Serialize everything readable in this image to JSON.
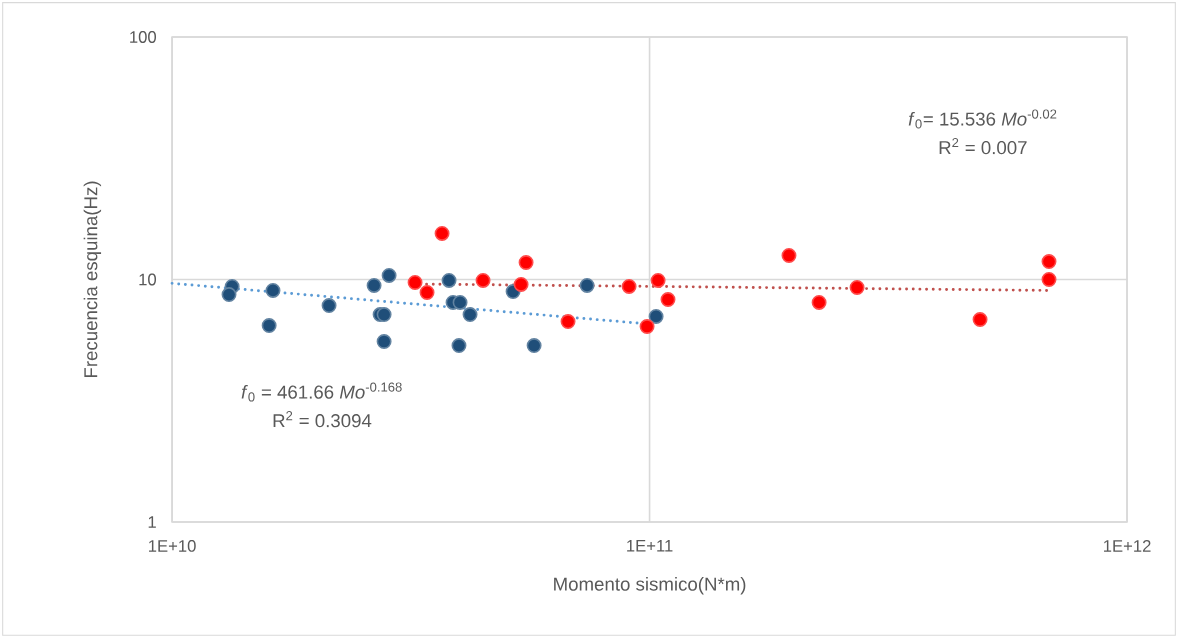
{
  "chart_data": {
    "type": "scatter",
    "xlabel": "Momento sismico(N*m)",
    "ylabel": "Frecuencia esquina(Hz)",
    "log": "xy",
    "grid": true,
    "marker": "circle",
    "xlim": [
      10000000000,
      1000000000000
    ],
    "ylim": [
      1,
      100
    ],
    "xticks": [
      {
        "value": 10000000000,
        "label": "1E+10"
      },
      {
        "value": 100000000000,
        "label": "1E+11"
      },
      {
        "value": 1000000000000,
        "label": "1E+12"
      }
    ],
    "yticks": [
      1,
      10,
      100
    ],
    "series": [
      {
        "color": "#1f4e79",
        "x": [
          13360000000,
          13160000000,
          16270000000,
          15970000000,
          21320000000,
          26490000000,
          28480000000,
          27270000000,
          27800000000,
          27800000000,
          38030000000,
          38770000000,
          40100000000,
          42080000000,
          39900000000,
          51780000000,
          57310000000,
          73990000000,
          103200000000
        ],
        "values": [
          9.36,
          8.67,
          9.01,
          6.46,
          7.81,
          9.45,
          10.39,
          7.17,
          7.17,
          5.55,
          9.91,
          8.04,
          8.04,
          7.17,
          5.34,
          8.92,
          5.34,
          9.45,
          7.04
        ]
      },
      {
        "color": "#ff0000",
        "x": [
          36770000000,
          32280000000,
          34200000000,
          44800000000,
          55130000000,
          53820000000,
          67500000000,
          90600000000,
          98800000000,
          104200000000,
          109300000000,
          195900000000,
          226500000000,
          272000000000,
          492200000000,
          686400000000,
          686400000000
        ],
        "values": [
          15.48,
          9.72,
          8.84,
          9.91,
          11.75,
          9.54,
          6.71,
          9.36,
          6.4,
          9.91,
          8.27,
          12.56,
          8.04,
          9.27,
          6.84,
          11.86,
          10.0
        ]
      },
      {
        "type": "line",
        "color": "#5b9bd5",
        "line_style": "dotted",
        "marker": "none",
        "x": [
          10000000000,
          98000000000
        ],
        "values": [
          9.64,
          6.57
        ]
      },
      {
        "type": "line",
        "color": "#c0504d",
        "line_style": "dotted",
        "marker": "none",
        "x": [
          32000000000,
          690000000000
        ],
        "values": [
          9.58,
          9.01
        ]
      }
    ],
    "annotations": [
      "*f*$_{0}$= 15.536 *Mo*$^{-0.02}$",
      "R$^{2}$ = 0.007",
      "*f*$_{0}$ = 461.66 *Mo*$^{-0.168}$",
      "R$^{2}$ = 0.3094"
    ]
  }
}
